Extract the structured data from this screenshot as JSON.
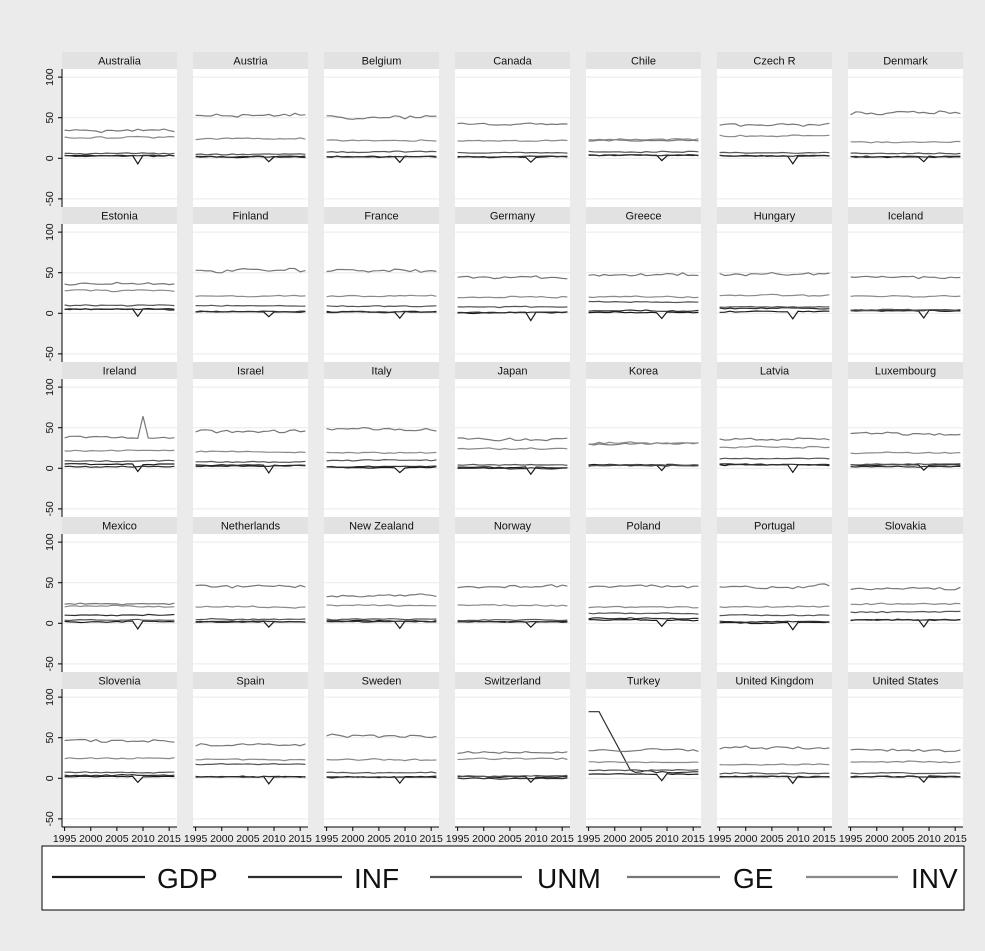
{
  "chart_data": {
    "type": "line",
    "layout": "small-multiples",
    "panels": [
      "Australia",
      "Austria",
      "Belgium",
      "Canada",
      "Chile",
      "Czech R",
      "Denmark",
      "Estonia",
      "Finland",
      "France",
      "Germany",
      "Greece",
      "Hungary",
      "Iceland",
      "Ireland",
      "Israel",
      "Italy",
      "Japan",
      "Korea",
      "Latvia",
      "Luxembourg",
      "Mexico",
      "Netherlands",
      "New Zealand",
      "Norway",
      "Poland",
      "Portugal",
      "Slovakia",
      "Slovenia",
      "Spain",
      "Sweden",
      "Switzerland",
      "Turkey",
      "United Kingdom",
      "United States"
    ],
    "x": [
      1995,
      1996,
      1997,
      1998,
      1999,
      2000,
      2001,
      2002,
      2003,
      2004,
      2005,
      2006,
      2007,
      2008,
      2009,
      2010,
      2011,
      2012,
      2013,
      2014,
      2015,
      2016
    ],
    "xticks": [
      1995,
      2000,
      2005,
      2010,
      2015
    ],
    "yticks": [
      -50,
      0,
      50,
      100
    ],
    "ylim": [
      -60,
      110
    ],
    "xlim": [
      1994.5,
      2016.5
    ],
    "grid": true,
    "legend_position": "bottom",
    "series_names": [
      "GDP",
      "INF",
      "UNM",
      "GE",
      "INV"
    ],
    "series_colors": [
      "#1a1a1a",
      "#2e2e2e",
      "#555555",
      "#777777",
      "#8a8a8a"
    ],
    "series_levels": {
      "Australia": {
        "GDP": 3,
        "INF": 3,
        "UNM": 6,
        "GE": 34,
        "INV": 26
      },
      "Austria": {
        "GDP": 2,
        "INF": 2,
        "UNM": 5,
        "GE": 52,
        "INV": 24
      },
      "Belgium": {
        "GDP": 2,
        "INF": 2,
        "UNM": 8,
        "GE": 51,
        "INV": 22
      },
      "Canada": {
        "GDP": 2,
        "INF": 2,
        "UNM": 7,
        "GE": 42,
        "INV": 22
      },
      "Chile": {
        "GDP": 4,
        "INF": 4,
        "UNM": 8,
        "GE": 22,
        "INV": 23
      },
      "Czech R": {
        "GDP": 3,
        "INF": 3,
        "UNM": 7,
        "GE": 42,
        "INV": 28
      },
      "Denmark": {
        "GDP": 2,
        "INF": 2,
        "UNM": 6,
        "GE": 55,
        "INV": 20
      },
      "Estonia": {
        "GDP": 5,
        "INF": 5,
        "UNM": 10,
        "GE": 36,
        "INV": 28
      },
      "Finland": {
        "GDP": 2,
        "INF": 2,
        "UNM": 9,
        "GE": 52,
        "INV": 21
      },
      "France": {
        "GDP": 2,
        "INF": 1,
        "UNM": 9,
        "GE": 53,
        "INV": 21
      },
      "Germany": {
        "GDP": 1,
        "INF": 1,
        "UNM": 8,
        "GE": 45,
        "INV": 20
      },
      "Greece": {
        "GDP": 1,
        "INF": 3,
        "UNM": 14,
        "GE": 48,
        "INV": 20
      },
      "Hungary": {
        "GDP": 2,
        "INF": 6,
        "UNM": 8,
        "GE": 48,
        "INV": 22
      },
      "Iceland": {
        "GDP": 3,
        "INF": 4,
        "UNM": 4,
        "GE": 44,
        "INV": 21
      },
      "Ireland": {
        "GDP": 5,
        "INF": 2,
        "UNM": 9,
        "GE": 38,
        "INV": 22
      },
      "Israel": {
        "GDP": 4,
        "INF": 3,
        "UNM": 8,
        "GE": 46,
        "INV": 20
      },
      "Italy": {
        "GDP": 1,
        "INF": 2,
        "UNM": 10,
        "GE": 48,
        "INV": 19
      },
      "Japan": {
        "GDP": 1,
        "INF": 0,
        "UNM": 4,
        "GE": 36,
        "INV": 24
      },
      "Korea": {
        "GDP": 4,
        "INF": 3,
        "UNM": 4,
        "GE": 30,
        "INV": 31
      },
      "Latvia": {
        "GDP": 4,
        "INF": 5,
        "UNM": 12,
        "GE": 36,
        "INV": 26
      },
      "Luxembourg": {
        "GDP": 4,
        "INF": 2,
        "UNM": 5,
        "GE": 42,
        "INV": 19
      },
      "Mexico": {
        "GDP": 2,
        "INF": 10,
        "UNM": 4,
        "GE": 24,
        "INV": 21
      },
      "Netherlands": {
        "GDP": 2,
        "INF": 2,
        "UNM": 5,
        "GE": 45,
        "INV": 20
      },
      "New Zealand": {
        "GDP": 3,
        "INF": 2,
        "UNM": 5,
        "GE": 34,
        "INV": 22
      },
      "Norway": {
        "GDP": 2,
        "INF": 2,
        "UNM": 4,
        "GE": 45,
        "INV": 22
      },
      "Poland": {
        "GDP": 4,
        "INF": 6,
        "UNM": 12,
        "GE": 45,
        "INV": 20
      },
      "Portugal": {
        "GDP": 1,
        "INF": 2,
        "UNM": 10,
        "GE": 46,
        "INV": 20
      },
      "Slovakia": {
        "GDP": 4,
        "INF": 4,
        "UNM": 14,
        "GE": 42,
        "INV": 24
      },
      "Slovenia": {
        "GDP": 2,
        "INF": 4,
        "UNM": 7,
        "GE": 45,
        "INV": 25
      },
      "Spain": {
        "GDP": 2,
        "INF": 2,
        "UNM": 17,
        "GE": 41,
        "INV": 23
      },
      "Sweden": {
        "GDP": 2,
        "INF": 1,
        "UNM": 7,
        "GE": 52,
        "INV": 23
      },
      "Switzerland": {
        "GDP": 2,
        "INF": 0,
        "UNM": 3,
        "GE": 32,
        "INV": 24
      },
      "Turkey": {
        "GDP": 5,
        "INF": 30,
        "UNM": 10,
        "GE": 35,
        "INV": 20
      },
      "United Kingdom": {
        "GDP": 2,
        "INF": 2,
        "UNM": 6,
        "GE": 38,
        "INV": 17
      },
      "United States": {
        "GDP": 2,
        "INF": 2,
        "UNM": 6,
        "GE": 35,
        "INV": 20
      }
    }
  }
}
